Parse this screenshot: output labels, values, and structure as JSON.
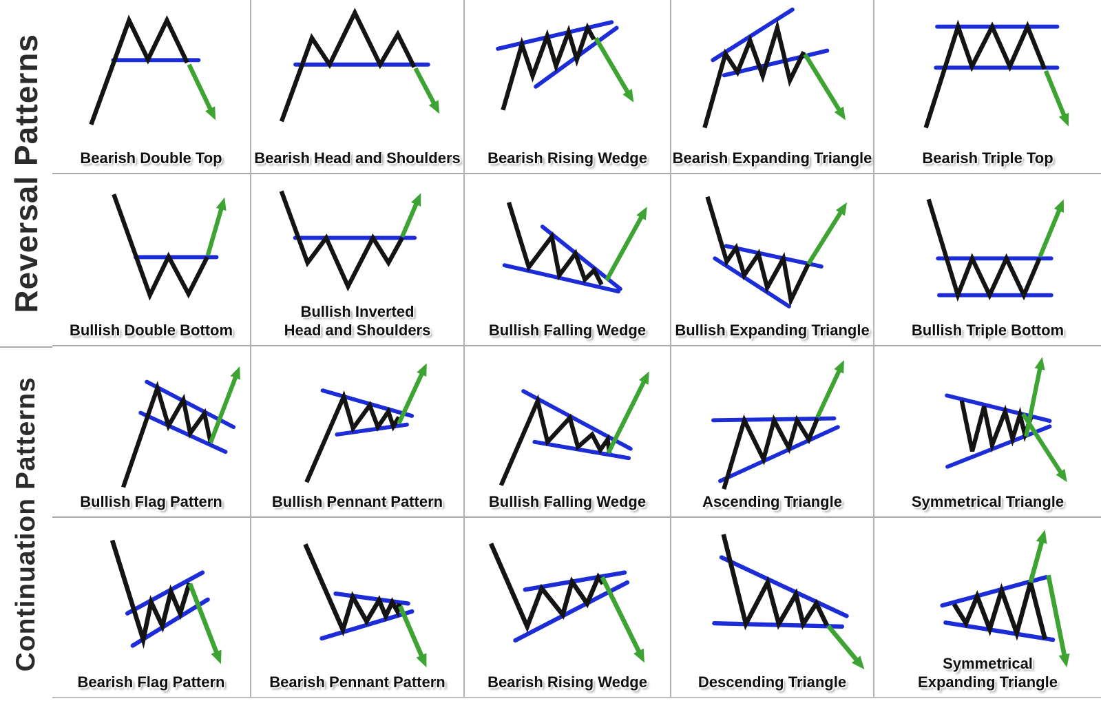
{
  "page": {
    "background": "#ffffff"
  },
  "colors": {
    "price_line": "#141414",
    "trend_line": "#1c2cd6",
    "signal_arrow": "#3da332",
    "grid_line": "#a9a9a9",
    "label_text": "#101010",
    "section_text": "#2b2b2b"
  },
  "sections": [
    {
      "title": "Reversal Patterns",
      "rows": [
        {
          "cells": [
            {
              "label": "Bearish Double Top",
              "pattern": "double_top",
              "arrow": "down"
            },
            {
              "label": "Bearish Head and Shoulders",
              "pattern": "head_shoulders",
              "arrow": "down"
            },
            {
              "label": "Bearish Rising Wedge",
              "pattern": "rising_wedge_top",
              "arrow": "down"
            },
            {
              "label": "Bearish Expanding Triangle",
              "pattern": "expanding_triangle_up",
              "arrow": "down"
            },
            {
              "label": "Bearish Triple Top",
              "pattern": "triple_top",
              "arrow": "down"
            }
          ]
        },
        {
          "cells": [
            {
              "label": "Bullish Double Bottom",
              "pattern": "double_bottom",
              "arrow": "up"
            },
            {
              "label": "Bullish Inverted",
              "label2": "Head and Shoulders",
              "pattern": "inv_head_shoulders",
              "arrow": "up"
            },
            {
              "label": "Bullish Falling Wedge",
              "pattern": "falling_wedge_bottom",
              "arrow": "up"
            },
            {
              "label": "Bullish Expanding Triangle",
              "pattern": "expanding_triangle_down",
              "arrow": "up"
            },
            {
              "label": "Bullish Triple Bottom",
              "pattern": "triple_bottom",
              "arrow": "up"
            }
          ]
        }
      ]
    },
    {
      "title": "Continuation Patterns",
      "rows": [
        {
          "cells": [
            {
              "label": "Bullish Flag Pattern",
              "pattern": "bull_flag",
              "arrow": "up"
            },
            {
              "label": "Bullish Pennant Pattern",
              "pattern": "bull_pennant",
              "arrow": "up"
            },
            {
              "label": "Bullish Falling Wedge",
              "pattern": "bull_falling_wedge2",
              "arrow": "up"
            },
            {
              "label": "Ascending Triangle",
              "pattern": "ascending_triangle",
              "arrow": "up"
            },
            {
              "label": "Symmetrical Triangle",
              "pattern": "symmetrical_triangle",
              "arrow": "both"
            }
          ]
        },
        {
          "cells": [
            {
              "label": "Bearish Flag Pattern",
              "pattern": "bear_flag",
              "arrow": "down"
            },
            {
              "label": "Bearish Pennant Pattern",
              "pattern": "bear_pennant",
              "arrow": "down"
            },
            {
              "label": "Bearish Rising Wedge",
              "pattern": "bear_rising_wedge2",
              "arrow": "down"
            },
            {
              "label": "Descending Triangle",
              "pattern": "descending_triangle",
              "arrow": "down"
            },
            {
              "label": "Symmetrical",
              "label2": "Expanding Triangle",
              "pattern": "sym_expanding_triangle",
              "arrow": "both"
            }
          ]
        }
      ]
    }
  ]
}
